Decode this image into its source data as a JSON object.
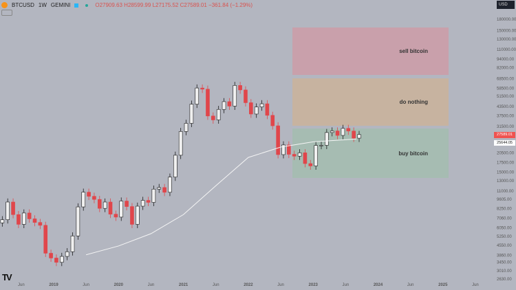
{
  "header": {
    "symbol": "BTCUSD",
    "interval": "1W",
    "exchange": "GEMINI",
    "open": "O27909.63",
    "high": "H28599.99",
    "low": "L27175.52",
    "close": "C27589.01",
    "change": "−361.84 (−1.29%)"
  },
  "currency": "USD",
  "price_label": "27589.01",
  "ma_label": "25644.05",
  "zones": [
    {
      "label": "sell bitcoin",
      "color": "#c9a0ab"
    },
    {
      "label": "do nothing",
      "color": "#c7b3a0"
    },
    {
      "label": "buy bitcoin",
      "color": "#a6bcb2"
    }
  ],
  "chart_data": {
    "type": "candlestick",
    "scale": "log",
    "ylim": [
      2630,
      180000
    ],
    "y_ticks": [
      "180000.00",
      "150000.00",
      "130000.00",
      "110000.00",
      "94000.00",
      "82000.00",
      "68500.00",
      "58500.00",
      "51500.00",
      "43500.00",
      "37500.00",
      "31500.00",
      "20500.00",
      "17500.00",
      "15000.00",
      "13000.00",
      "11000.00",
      "9605.00",
      "8250.00",
      "7060.00",
      "6050.00",
      "5250.00",
      "4550.00",
      "3860.00",
      "3450.00",
      "3010.00",
      "2630.00"
    ],
    "x_ticks": [
      "Jun",
      "2019",
      "Jun",
      "2020",
      "Jun",
      "2021",
      "Jun",
      "2022",
      "Jun",
      "2023",
      "Jun",
      "2024",
      "Jun",
      "2025",
      "Jun"
    ],
    "zones_price": [
      {
        "label": "sell bitcoin",
        "from": 76000,
        "to": 165000
      },
      {
        "label": "do nothing",
        "from": 36000,
        "to": 70000
      },
      {
        "label": "buy bitcoin",
        "from": 13500,
        "to": 33500
      }
    ],
    "start": "2018-03",
    "monthly_close": [
      6900,
      9200,
      7500,
      6400,
      7700,
      7000,
      6600,
      6300,
      4000,
      3700,
      3450,
      3800,
      4100,
      5300,
      8500,
      10800,
      10100,
      9600,
      8300,
      9200,
      7550,
      7200,
      9350,
      8550,
      6400,
      8600,
      9450,
      9150,
      11350,
      11650,
      10780,
      13800,
      19700,
      29000,
      33100,
      45200,
      58800,
      57700,
      37300,
      35000,
      41500,
      47100,
      43800,
      61300,
      57000,
      46300,
      38500,
      43200,
      45500,
      37700,
      31800,
      19900,
      23300,
      20000,
      19400,
      20500,
      17200,
      16550,
      23100,
      23150,
      28500,
      29250,
      27200,
      30500,
      29200,
      26000,
      27589
    ],
    "ma_200w": [
      {
        "date": "2019-07",
        "value": 3900
      },
      {
        "date": "2020-01",
        "value": 4500
      },
      {
        "date": "2020-07",
        "value": 5500
      },
      {
        "date": "2021-01",
        "value": 7500
      },
      {
        "date": "2021-07",
        "value": 12000
      },
      {
        "date": "2022-01",
        "value": 19000
      },
      {
        "date": "2022-07",
        "value": 22500
      },
      {
        "date": "2023-01",
        "value": 24500
      },
      {
        "date": "2023-09",
        "value": 25644
      }
    ]
  }
}
